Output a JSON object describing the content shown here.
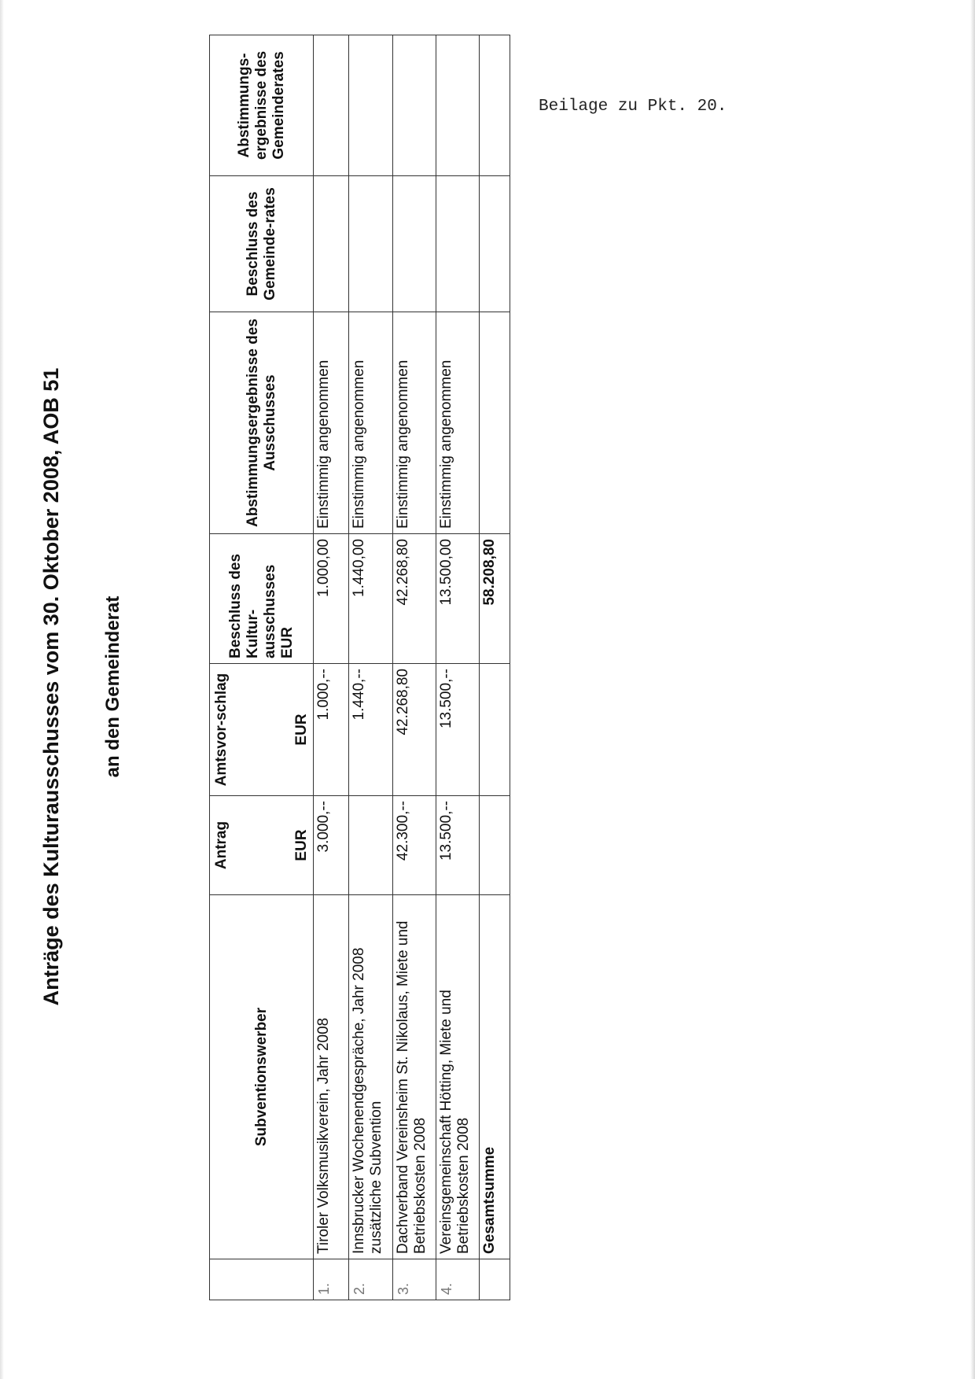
{
  "annex_note": "Beilage zu Pkt. 20.",
  "title": "Anträge des Kulturausschusses vom 30. Oktober 2008, AOB 51",
  "subtitle": "an den Gemeinderat",
  "table": {
    "headers": {
      "nr": "",
      "applicant": "Subventionswerber",
      "request": "Antrag",
      "request_unit": "EUR",
      "office_proposal": "Amtsvor-schlag",
      "office_proposal_unit": "EUR",
      "committee_decision": "Beschluss des Kultur-ausschusses",
      "committee_decision_unit": "EUR",
      "committee_vote": "Abstimmungsergebnisse des Ausschusses",
      "council_decision": "Beschluss des Gemeinde-rates",
      "council_vote": "Abstimmungs-ergebnisse des Gemeinderates"
    },
    "rows": [
      {
        "nr": "1.",
        "applicant": "Tiroler Volksmusikverein, Jahr 2008",
        "request": "3.000,--",
        "office_proposal": "1.000,--",
        "committee_decision": "1.000,00",
        "committee_vote": "Einstimmig angenommen",
        "council_decision": "",
        "council_vote": ""
      },
      {
        "nr": "2.",
        "applicant": "Innsbrucker Wochenendgespräche, Jahr 2008 zusätzliche Subvention",
        "request": "",
        "office_proposal": "1.440,--",
        "committee_decision": "1.440,00",
        "committee_vote": "Einstimmig angenommen",
        "council_decision": "",
        "council_vote": ""
      },
      {
        "nr": "3.",
        "applicant": "Dachverband Vereinsheim St. Nikolaus, Miete und Betriebskosten 2008",
        "request": "42.300,--",
        "office_proposal": "42.268,80",
        "committee_decision": "42.268,80",
        "committee_vote": "Einstimmig angenommen",
        "council_decision": "",
        "council_vote": ""
      },
      {
        "nr": "4.",
        "applicant": "Vereinsgemeinschaft Hötting, Miete und Betriebskosten 2008",
        "request": "13.500,--",
        "office_proposal": "13.500,--",
        "committee_decision": "13.500,00",
        "committee_vote": "Einstimmig angenommen",
        "council_decision": "",
        "council_vote": ""
      }
    ],
    "total": {
      "label": "Gesamtsumme",
      "committee_decision": "58.208,80"
    }
  }
}
